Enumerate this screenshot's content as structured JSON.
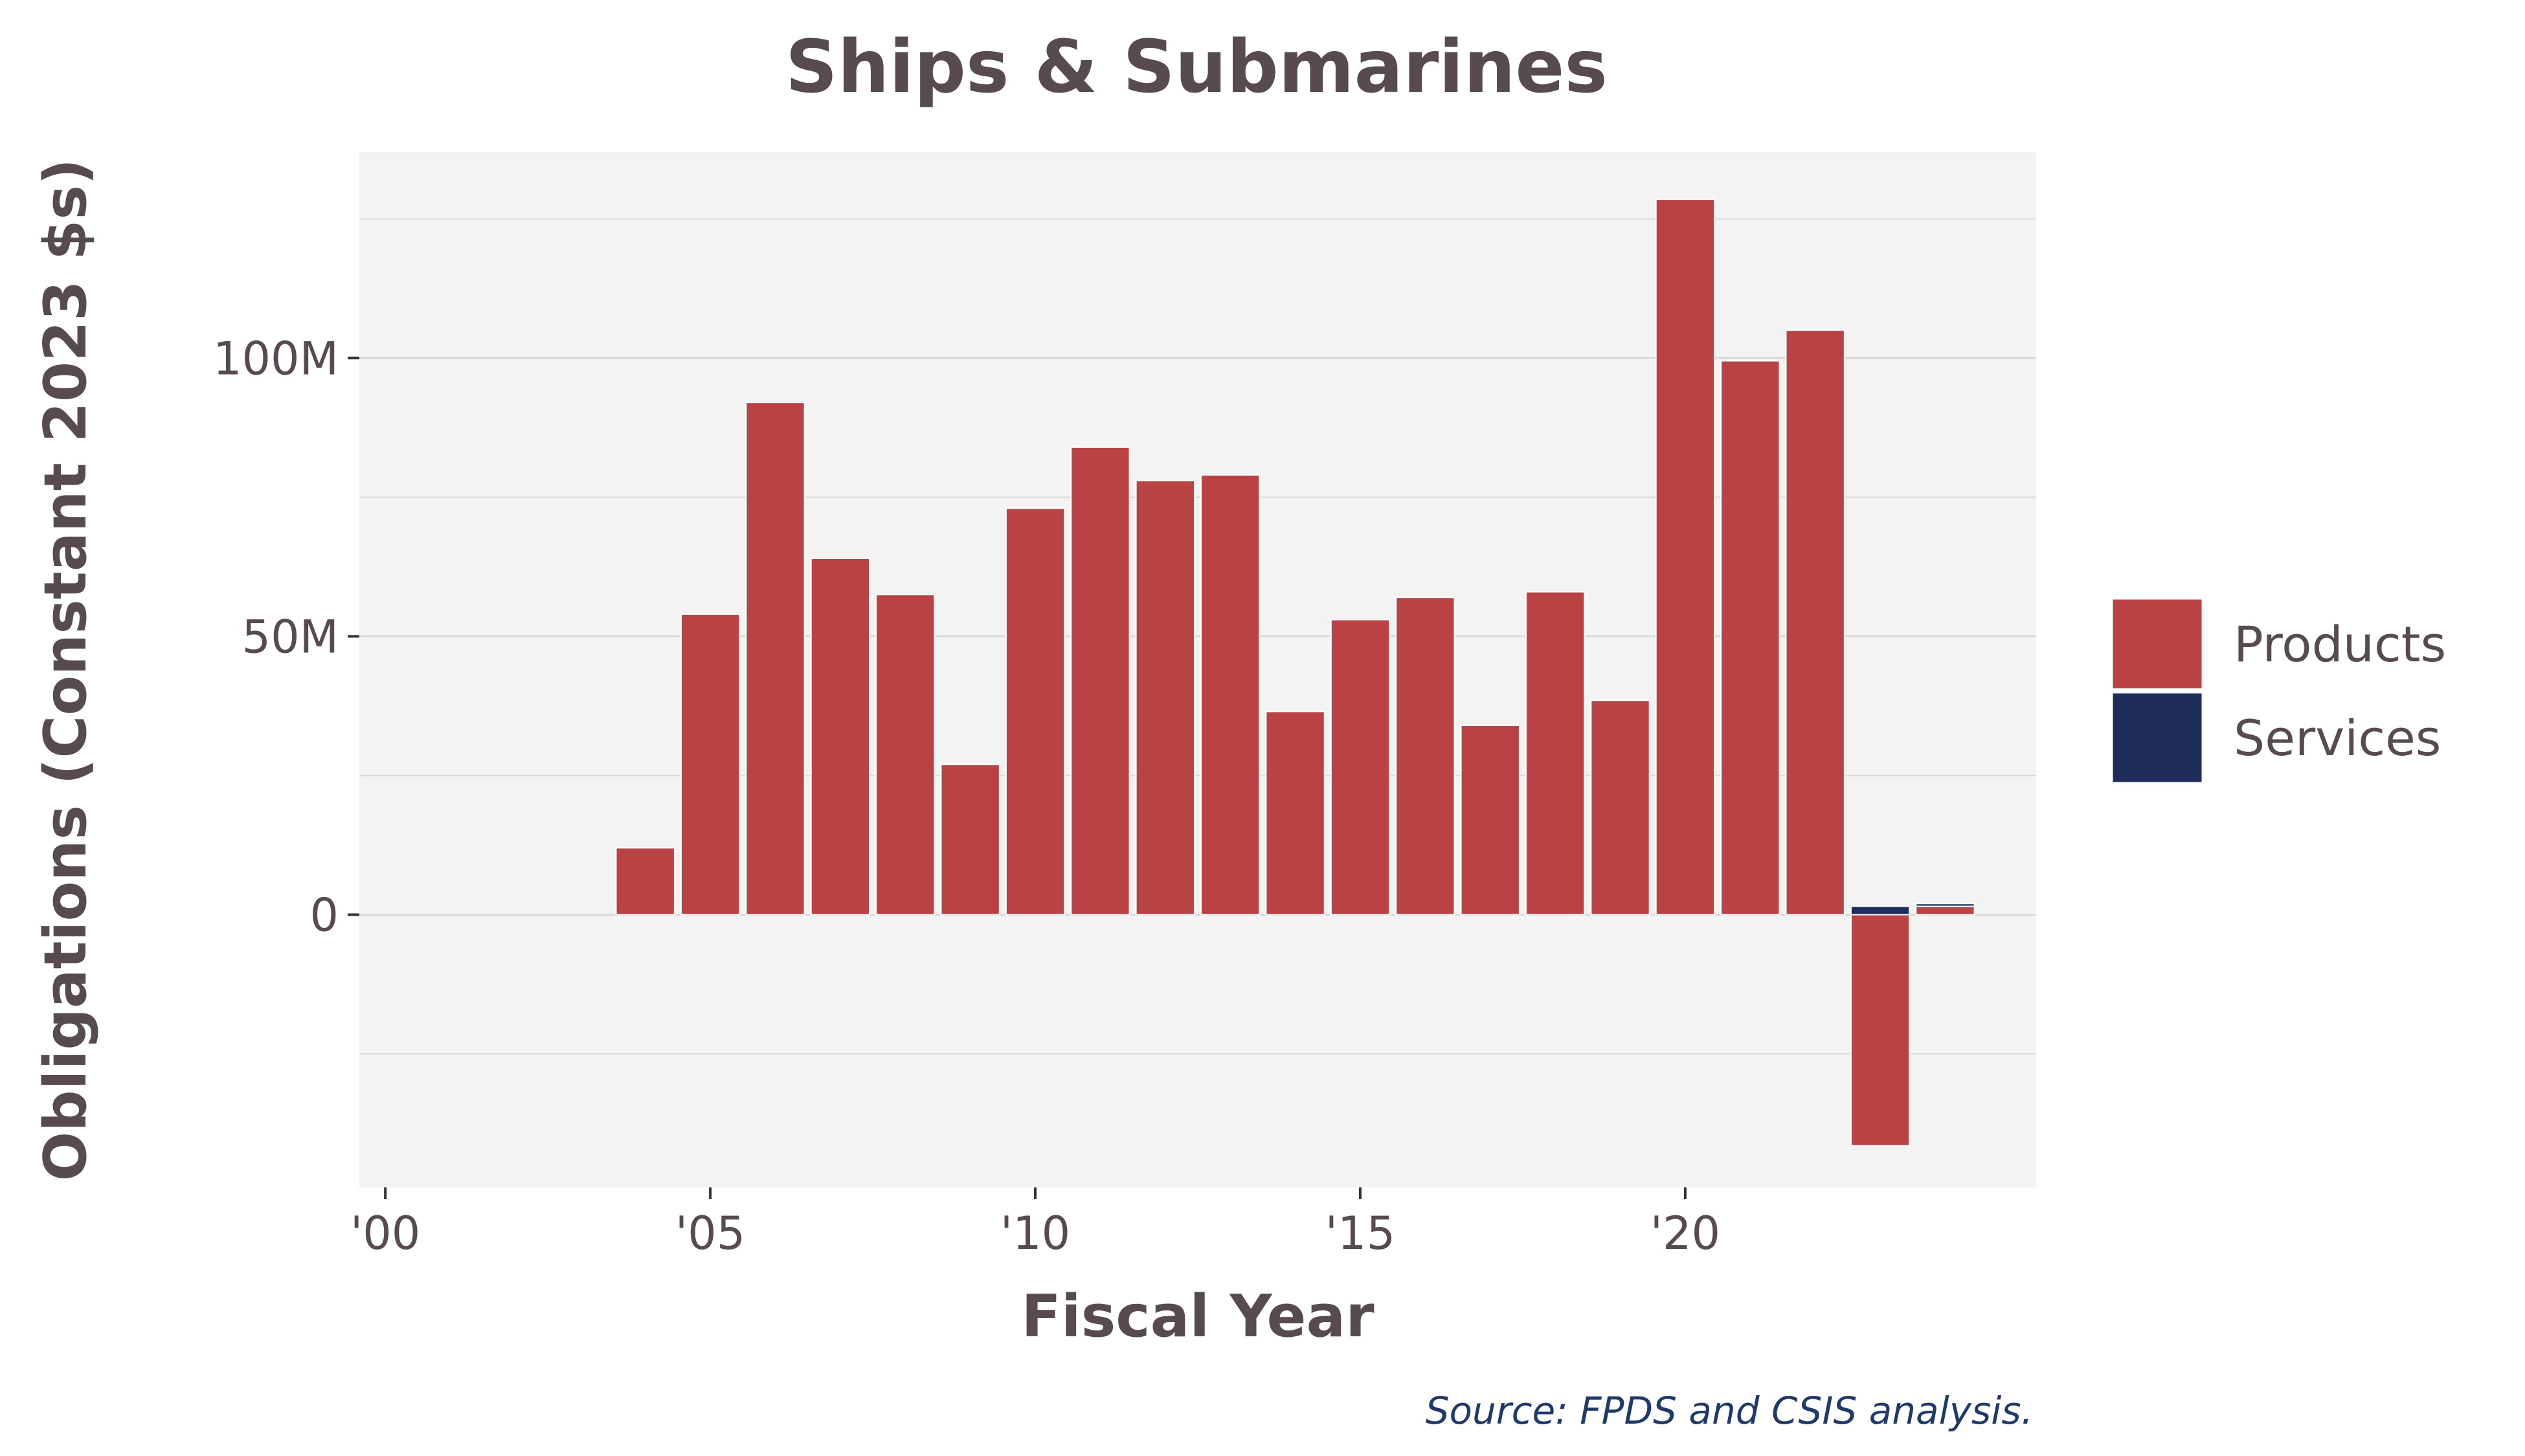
{
  "chart_data": {
    "type": "bar",
    "stacked": true,
    "title": "Ships & Submarines",
    "xlabel": "Fiscal Year",
    "ylabel": "Obligations (Constant 2023 $s)",
    "source": "Source: FPDS and CSIS analysis.",
    "x": [
      2004,
      2005,
      2006,
      2007,
      2008,
      2009,
      2010,
      2011,
      2012,
      2013,
      2014,
      2015,
      2016,
      2017,
      2018,
      2019,
      2020,
      2021,
      2022,
      2023,
      2024
    ],
    "xlim": [
      1999.6,
      2025.4
    ],
    "ylim": [
      -49,
      137
    ],
    "x_ticks": [
      {
        "value": 2000,
        "label": "'00"
      },
      {
        "value": 2005,
        "label": "'05"
      },
      {
        "value": 2010,
        "label": "'10"
      },
      {
        "value": 2015,
        "label": "'15"
      },
      {
        "value": 2020,
        "label": "'20"
      }
    ],
    "y_ticks": [
      {
        "value": 0,
        "label": "0"
      },
      {
        "value": 50,
        "label": "50M"
      },
      {
        "value": 100,
        "label": "100M"
      }
    ],
    "y_minor_gridlines": [
      -25,
      25,
      75,
      125
    ],
    "series": [
      {
        "name": "Products",
        "color": "#b84244",
        "values": [
          12,
          54,
          92,
          64,
          57.5,
          27,
          73,
          84,
          78,
          79,
          36.5,
          53,
          57,
          34,
          58,
          38.5,
          128.5,
          99.5,
          105,
          -41.5,
          1.5
        ]
      },
      {
        "name": "Services",
        "color": "#1e2d5c",
        "values": [
          0,
          0,
          0,
          0,
          0,
          0,
          0,
          0,
          0,
          0,
          0,
          0,
          0,
          0,
          0,
          0,
          0,
          0,
          0,
          1.5,
          0.5
        ]
      }
    ],
    "panel_background": "#f3f3f3",
    "gridline_color": "#d9d9d9",
    "legend_position": "right",
    "grid": true
  }
}
